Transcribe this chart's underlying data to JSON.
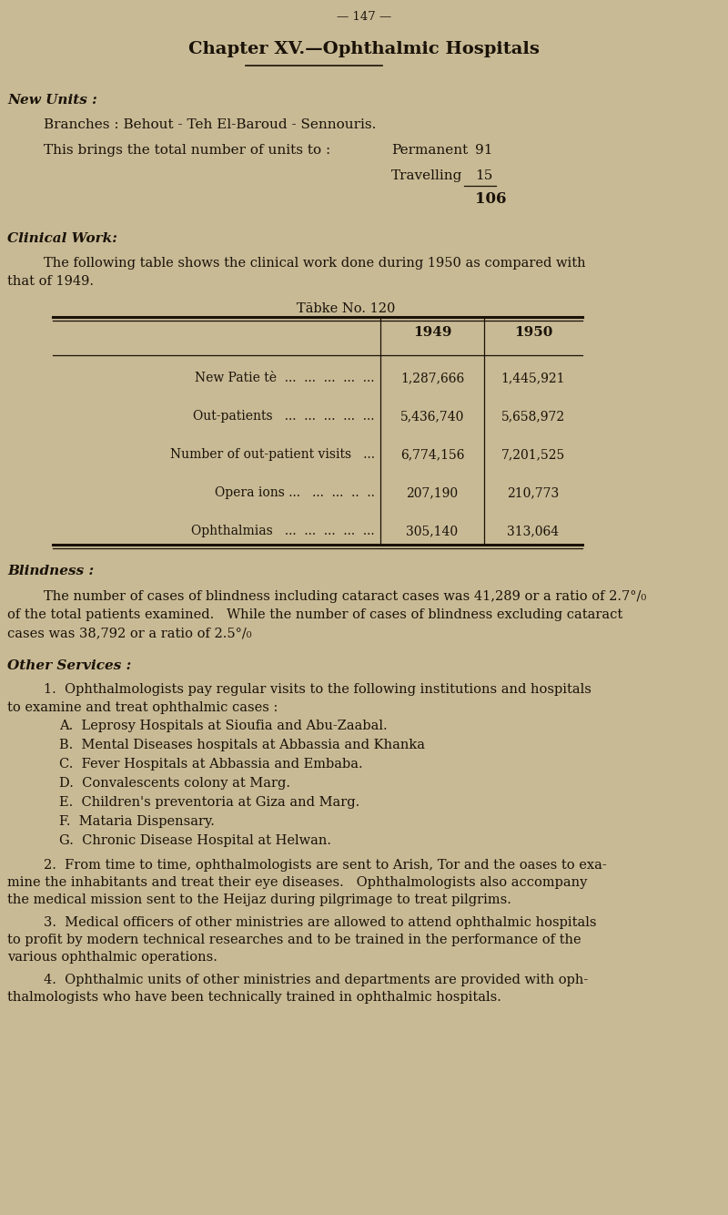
{
  "bg_color": "#c8ba95",
  "text_color": "#1a1208",
  "page_number": "— 147 —",
  "chapter_title": "Chapter XV.—Ophthalmic Hospitals",
  "new_units_label": "New Units :",
  "branches_line": "Branches : Behout - Teh El-Baroud - Sennouris.",
  "total_units_line": "This brings the total number of units to :",
  "permanent_label": "Permanent",
  "permanent_value": "91",
  "travelling_label": "Travelling",
  "travelling_value": "15",
  "total_value": "106",
  "clinical_work_label": "Clinical Work:",
  "clinical_work_line1": "The following table shows the clinical work done during 1950 as compared with",
  "clinical_work_line2": "that of 1949.",
  "table_title": "Tābke No. 120",
  "table_col1_header": "1949",
  "table_col2_header": "1950",
  "table_rows": [
    [
      "New Patie tè  ...  ...  ...  ...  ...",
      "1,287,666",
      "1,445,921"
    ],
    [
      "Out-patients   ...  ...  ...  ...  ...",
      "5,436,740",
      "5,658,972"
    ],
    [
      "Number of out-patient visits   ...",
      "6,774,156",
      "7,201,525"
    ],
    [
      "Opera ions ...   ...  ...  ..  ..",
      "207,190",
      "210,773"
    ],
    [
      "Ophthalmias   ...  ...  ...  ...  ...",
      "305,140",
      "313,064"
    ]
  ],
  "blindness_label": "Blindness :",
  "blindness_para": "The number of cases of blindness including cataract cases was 41,289 or a ratio of 2.7°/₀\nof the total patients examined.   While the number of cases of blindness excluding cataract\ncases was 38,792 or a ratio of 2.5°/₀",
  "other_services_label": "Other Services :",
  "other_services_intro_line1": "1.  Ophthalmologists pay regular visits to the following institutions and hospitals",
  "other_services_intro_line2": "to examine and treat ophthalmic cases :",
  "sub_items": [
    "A.  Leprosy Hospitals at Sioufia and Abu-Zaabal.",
    "B.  Mental Diseases hospitals at Abbassia and Khanka",
    "C.  Fever Hospitals at Abbassia and Embaba.",
    "D.  Convalescents colony at Marg.",
    "E.  Children's preventoria at Giza and Marg.",
    "F.  Mataria Dispensary.",
    "G.  Chronic Disease Hospital at Helwan."
  ],
  "para2_lines": [
    "2.  From time to time, ophthalmologists are sent to Arish, Tor and the oases to exa-",
    "mine the inhabitants and treat their eye diseases.   Ophthalmologists also accompany",
    "the medical mission sent to the Heijaz during pilgrimage to treat pilgrims."
  ],
  "para3_lines": [
    "3.  Medical officers of other ministries are allowed to attend ophthalmic hospitals",
    "to profit by modern technical researches and to be trained in the performance of the",
    "various ophthalmic operations."
  ],
  "para4_lines": [
    "4.  Ophthalmic units of other ministries and departments are provided with oph-",
    "thalmologists who have been technically trained in ophthalmic hospitals."
  ]
}
